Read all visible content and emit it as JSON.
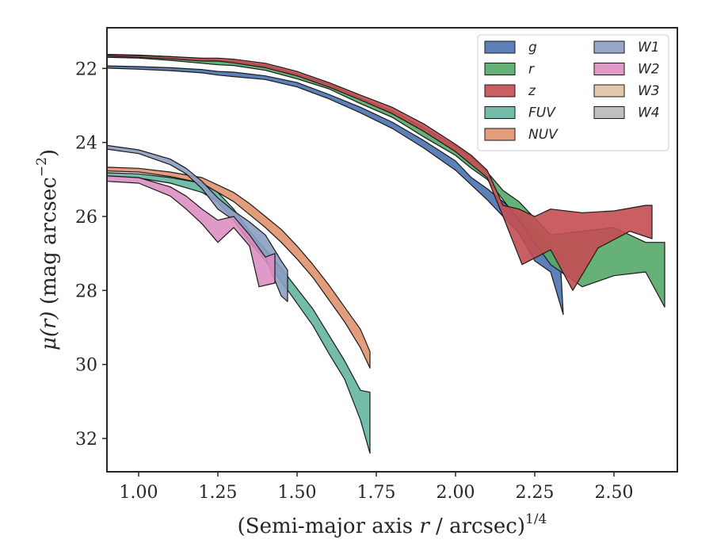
{
  "chart_data": {
    "type": "area",
    "title": "",
    "xlabel_main": "(Semi-major axis ",
    "xlabel_var": "r",
    "xlabel_tail": " / arcsec)",
    "xlabel_sup": "1/4",
    "ylabel_var": "μ(r)",
    "ylabel_tail": " (mag arcsec",
    "ylabel_sup": "−2",
    "ylabel_close": ")",
    "xlim": [
      0.9,
      2.7
    ],
    "ylim": [
      32.9,
      20.9
    ],
    "y_inverted": true,
    "xticks": [
      1.0,
      1.25,
      1.5,
      1.75,
      2.0,
      2.25,
      2.5
    ],
    "xtick_labels": [
      "1.00",
      "1.25",
      "1.50",
      "1.75",
      "2.00",
      "2.25",
      "2.50"
    ],
    "yticks": [
      22,
      24,
      26,
      28,
      30,
      32
    ],
    "ytick_labels": [
      "22",
      "24",
      "26",
      "28",
      "30",
      "32"
    ],
    "grid": false,
    "legend_position": "top-right",
    "legend_columns": 2,
    "series": [
      {
        "name": "g",
        "label": "g",
        "color": "#4c72b0",
        "upper": [
          [
            0.9,
            21.93
          ],
          [
            1.0,
            21.95
          ],
          [
            1.1,
            21.98
          ],
          [
            1.2,
            22.03
          ],
          [
            1.25,
            22.08
          ],
          [
            1.3,
            22.1
          ],
          [
            1.4,
            22.2
          ],
          [
            1.5,
            22.38
          ],
          [
            1.6,
            22.7
          ],
          [
            1.7,
            23.05
          ],
          [
            1.8,
            23.45
          ],
          [
            1.9,
            23.95
          ],
          [
            2.0,
            24.5
          ],
          [
            2.05,
            24.95
          ],
          [
            2.1,
            25.25
          ],
          [
            2.15,
            25.6
          ],
          [
            2.2,
            26.0
          ],
          [
            2.25,
            26.4
          ],
          [
            2.3,
            26.8
          ],
          [
            2.33,
            27.1
          ]
        ],
        "lower": [
          [
            0.9,
            21.99
          ],
          [
            1.0,
            22.02
          ],
          [
            1.1,
            22.06
          ],
          [
            1.2,
            22.12
          ],
          [
            1.25,
            22.18
          ],
          [
            1.3,
            22.22
          ],
          [
            1.4,
            22.3
          ],
          [
            1.5,
            22.5
          ],
          [
            1.6,
            22.82
          ],
          [
            1.7,
            23.2
          ],
          [
            1.8,
            23.62
          ],
          [
            1.9,
            24.15
          ],
          [
            2.0,
            24.75
          ],
          [
            2.05,
            25.15
          ],
          [
            2.1,
            25.55
          ],
          [
            2.15,
            26.0
          ],
          [
            2.2,
            26.45
          ],
          [
            2.25,
            27.2
          ],
          [
            2.3,
            27.5
          ],
          [
            2.34,
            28.65
          ]
        ]
      },
      {
        "name": "r",
        "label": "r",
        "color": "#55a868",
        "upper": [
          [
            0.9,
            21.62
          ],
          [
            1.0,
            21.64
          ],
          [
            1.1,
            21.68
          ],
          [
            1.2,
            21.74
          ],
          [
            1.25,
            21.78
          ],
          [
            1.3,
            21.8
          ],
          [
            1.4,
            21.92
          ],
          [
            1.5,
            22.15
          ],
          [
            1.6,
            22.42
          ],
          [
            1.7,
            22.8
          ],
          [
            1.8,
            23.15
          ],
          [
            1.9,
            23.6
          ],
          [
            2.0,
            24.1
          ],
          [
            2.05,
            24.4
          ],
          [
            2.1,
            24.8
          ],
          [
            2.15,
            25.3
          ],
          [
            2.2,
            25.6
          ],
          [
            2.3,
            26.5
          ],
          [
            2.4,
            26.4
          ],
          [
            2.5,
            26.3
          ],
          [
            2.6,
            26.7
          ],
          [
            2.66,
            26.7
          ]
        ],
        "lower": [
          [
            0.9,
            21.7
          ],
          [
            1.0,
            21.72
          ],
          [
            1.1,
            21.78
          ],
          [
            1.2,
            21.86
          ],
          [
            1.25,
            21.9
          ],
          [
            1.3,
            21.92
          ],
          [
            1.4,
            22.05
          ],
          [
            1.5,
            22.28
          ],
          [
            1.6,
            22.55
          ],
          [
            1.7,
            22.95
          ],
          [
            1.8,
            23.32
          ],
          [
            1.9,
            23.85
          ],
          [
            2.0,
            24.35
          ],
          [
            2.05,
            24.7
          ],
          [
            2.1,
            25.0
          ],
          [
            2.15,
            25.55
          ],
          [
            2.2,
            26.1
          ],
          [
            2.3,
            27.3
          ],
          [
            2.4,
            27.9
          ],
          [
            2.5,
            27.6
          ],
          [
            2.6,
            27.5
          ],
          [
            2.66,
            28.45
          ]
        ]
      },
      {
        "name": "z",
        "label": "z",
        "color": "#c44e52",
        "upper": [
          [
            0.9,
            21.63
          ],
          [
            1.0,
            21.65
          ],
          [
            1.1,
            21.68
          ],
          [
            1.2,
            21.72
          ],
          [
            1.25,
            21.72
          ],
          [
            1.3,
            21.75
          ],
          [
            1.4,
            21.86
          ],
          [
            1.5,
            22.08
          ],
          [
            1.6,
            22.38
          ],
          [
            1.7,
            22.72
          ],
          [
            1.8,
            23.05
          ],
          [
            1.9,
            23.5
          ],
          [
            2.0,
            24.05
          ],
          [
            2.05,
            24.35
          ],
          [
            2.1,
            24.75
          ],
          [
            2.15,
            25.7
          ],
          [
            2.2,
            25.8
          ],
          [
            2.25,
            26.0
          ],
          [
            2.3,
            25.8
          ],
          [
            2.4,
            25.9
          ],
          [
            2.5,
            25.85
          ],
          [
            2.6,
            25.7
          ],
          [
            2.62,
            25.7
          ]
        ],
        "lower": [
          [
            0.9,
            21.67
          ],
          [
            1.0,
            21.7
          ],
          [
            1.1,
            21.74
          ],
          [
            1.2,
            21.8
          ],
          [
            1.25,
            21.8
          ],
          [
            1.3,
            21.85
          ],
          [
            1.4,
            21.98
          ],
          [
            1.5,
            22.2
          ],
          [
            1.6,
            22.5
          ],
          [
            1.7,
            22.85
          ],
          [
            1.8,
            23.22
          ],
          [
            1.9,
            23.7
          ],
          [
            2.0,
            24.25
          ],
          [
            2.05,
            24.6
          ],
          [
            2.1,
            24.95
          ],
          [
            2.15,
            26.0
          ],
          [
            2.21,
            27.3
          ],
          [
            2.3,
            26.9
          ],
          [
            2.37,
            28.0
          ],
          [
            2.45,
            26.85
          ],
          [
            2.55,
            26.4
          ],
          [
            2.62,
            26.6
          ]
        ]
      },
      {
        "name": "FUV",
        "label": "FUV",
        "color": "#64b5a0",
        "upper": [
          [
            0.9,
            24.82
          ],
          [
            1.0,
            24.85
          ],
          [
            1.1,
            24.95
          ],
          [
            1.2,
            25.1
          ],
          [
            1.25,
            25.35
          ],
          [
            1.3,
            25.8
          ],
          [
            1.35,
            26.4
          ],
          [
            1.4,
            26.9
          ],
          [
            1.45,
            27.4
          ],
          [
            1.5,
            27.95
          ],
          [
            1.55,
            28.5
          ],
          [
            1.6,
            29.2
          ],
          [
            1.65,
            29.9
          ],
          [
            1.7,
            30.7
          ],
          [
            1.73,
            30.75
          ]
        ],
        "lower": [
          [
            0.9,
            24.92
          ],
          [
            1.0,
            24.96
          ],
          [
            1.1,
            25.1
          ],
          [
            1.2,
            25.35
          ],
          [
            1.25,
            25.6
          ],
          [
            1.3,
            26.1
          ],
          [
            1.35,
            26.7
          ],
          [
            1.4,
            27.2
          ],
          [
            1.45,
            27.75
          ],
          [
            1.5,
            28.35
          ],
          [
            1.55,
            28.95
          ],
          [
            1.6,
            29.7
          ],
          [
            1.65,
            30.4
          ],
          [
            1.7,
            31.5
          ],
          [
            1.73,
            32.4
          ]
        ]
      },
      {
        "name": "NUV",
        "label": "NUV",
        "color": "#e1926e",
        "upper": [
          [
            0.9,
            24.67
          ],
          [
            1.0,
            24.7
          ],
          [
            1.1,
            24.8
          ],
          [
            1.2,
            24.95
          ],
          [
            1.25,
            25.15
          ],
          [
            1.3,
            25.35
          ],
          [
            1.35,
            25.65
          ],
          [
            1.4,
            26.0
          ],
          [
            1.45,
            26.35
          ],
          [
            1.5,
            26.8
          ],
          [
            1.55,
            27.3
          ],
          [
            1.6,
            27.85
          ],
          [
            1.65,
            28.45
          ],
          [
            1.7,
            29.05
          ],
          [
            1.73,
            29.65
          ]
        ],
        "lower": [
          [
            0.9,
            24.77
          ],
          [
            1.0,
            24.8
          ],
          [
            1.1,
            24.92
          ],
          [
            1.2,
            25.1
          ],
          [
            1.25,
            25.35
          ],
          [
            1.3,
            25.6
          ],
          [
            1.35,
            25.95
          ],
          [
            1.4,
            26.3
          ],
          [
            1.45,
            26.7
          ],
          [
            1.5,
            27.15
          ],
          [
            1.55,
            27.65
          ],
          [
            1.6,
            28.25
          ],
          [
            1.65,
            28.85
          ],
          [
            1.7,
            29.55
          ],
          [
            1.73,
            30.1
          ]
        ]
      },
      {
        "name": "W1",
        "label": "W1",
        "color": "#8c9dc2",
        "upper": [
          [
            0.9,
            24.08
          ],
          [
            1.0,
            24.2
          ],
          [
            1.1,
            24.45
          ],
          [
            1.15,
            24.7
          ],
          [
            1.2,
            25.05
          ],
          [
            1.25,
            25.5
          ],
          [
            1.3,
            25.85
          ],
          [
            1.35,
            26.15
          ],
          [
            1.4,
            26.5
          ],
          [
            1.45,
            27.2
          ],
          [
            1.47,
            27.45
          ]
        ],
        "lower": [
          [
            0.9,
            24.18
          ],
          [
            1.0,
            24.3
          ],
          [
            1.1,
            24.6
          ],
          [
            1.15,
            24.85
          ],
          [
            1.2,
            25.25
          ],
          [
            1.25,
            25.8
          ],
          [
            1.3,
            26.1
          ],
          [
            1.35,
            26.65
          ],
          [
            1.4,
            27.1
          ],
          [
            1.45,
            28.15
          ],
          [
            1.47,
            28.3
          ]
        ]
      },
      {
        "name": "W2",
        "label": "W2",
        "color": "#dd8fc2",
        "upper": [
          [
            0.9,
            24.9
          ],
          [
            1.0,
            24.95
          ],
          [
            1.1,
            25.2
          ],
          [
            1.15,
            25.45
          ],
          [
            1.2,
            25.8
          ],
          [
            1.25,
            26.1
          ],
          [
            1.3,
            26.0
          ],
          [
            1.35,
            26.5
          ],
          [
            1.4,
            27.1
          ],
          [
            1.43,
            27.0
          ]
        ],
        "lower": [
          [
            0.9,
            25.05
          ],
          [
            1.0,
            25.1
          ],
          [
            1.1,
            25.45
          ],
          [
            1.15,
            25.8
          ],
          [
            1.2,
            26.2
          ],
          [
            1.25,
            26.7
          ],
          [
            1.3,
            26.3
          ],
          [
            1.35,
            26.8
          ],
          [
            1.38,
            27.9
          ],
          [
            1.43,
            27.8
          ]
        ]
      },
      {
        "name": "W3",
        "label": "W3",
        "color": "#dfc3a3",
        "upper": [],
        "lower": []
      },
      {
        "name": "W4",
        "label": "W4",
        "color": "#b8b8b8",
        "upper": [],
        "lower": []
      }
    ]
  }
}
